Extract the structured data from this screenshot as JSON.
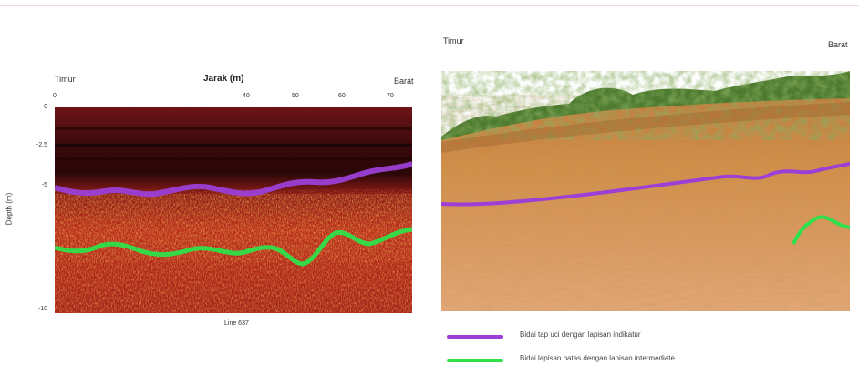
{
  "colors": {
    "purple_line": "#9b3fd6",
    "green_line": "#2fe04a"
  },
  "gpr": {
    "left_label": "Timur",
    "right_label": "Barat",
    "x_axis_title": "Jarak (m)",
    "y_axis_title": "Depth (m)",
    "x_ticks": [
      "0",
      "40",
      "50",
      "60",
      "70"
    ],
    "y_ticks": [
      "0",
      "-2,5",
      "-5",
      "-10"
    ],
    "line_label": "Line 637"
  },
  "photo": {
    "left_label": "Timur",
    "right_label": "Barat"
  },
  "legend": [
    {
      "text": "Bidai tap uci dengan lapisan indikatur"
    },
    {
      "text": "Bidai lapisan batas dengan lapisan intermediate"
    }
  ]
}
